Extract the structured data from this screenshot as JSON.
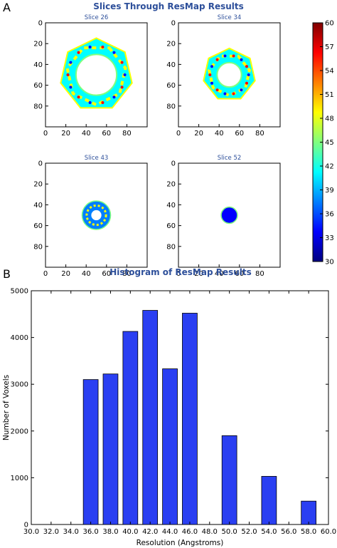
{
  "panel_a": {
    "letter": "A",
    "title": "Slices Through ResMap Results",
    "slices": [
      {
        "title": "Slice 26",
        "ring_outer": 36,
        "ring_inner": 20,
        "shape": "heptagon"
      },
      {
        "title": "Slice 34",
        "ring_outer": 26,
        "ring_inner": 12,
        "shape": "heptagon"
      },
      {
        "title": "Slice 43",
        "ring_outer": 14,
        "ring_inner": 5,
        "shape": "circle"
      },
      {
        "title": "Slice 52",
        "ring_outer": 8,
        "ring_inner": 0,
        "shape": "circle"
      }
    ],
    "x_ticks": [
      "0",
      "20",
      "40",
      "60",
      "80"
    ],
    "y_ticks": [
      "0",
      "20",
      "40",
      "60",
      "80"
    ],
    "colorbar": {
      "ticks": [
        "60",
        "57",
        "54",
        "51",
        "48",
        "45",
        "42",
        "39",
        "36",
        "33",
        "30"
      ],
      "min": 30,
      "max": 60,
      "colormap": [
        "#00007f",
        "#0000ff",
        "#007fff",
        "#00ffff",
        "#7fff7f",
        "#ffff00",
        "#ff7f00",
        "#ff0000",
        "#7f0000"
      ]
    }
  },
  "panel_b": {
    "letter": "B"
  },
  "chart_data": {
    "type": "bar",
    "title": "Histogram of ResMap Results",
    "xlabel": "Resolution (Angstroms)",
    "ylabel": "Number of Voxels",
    "categories": [
      "30.0",
      "32.0",
      "34.0",
      "36.0",
      "38.0",
      "40.0",
      "42.0",
      "44.0",
      "46.0",
      "48.0",
      "50.0",
      "52.0",
      "54.0",
      "56.0",
      "58.0",
      "60.0"
    ],
    "x": [
      36,
      38,
      40,
      42,
      44,
      46,
      50,
      54,
      58
    ],
    "values": [
      3100,
      3220,
      4130,
      4580,
      3330,
      4520,
      1900,
      1030,
      500
    ],
    "xlim": [
      30,
      60
    ],
    "ylim": [
      0,
      5000
    ],
    "y_ticks": [
      "0",
      "1000",
      "2000",
      "3000",
      "4000",
      "5000"
    ],
    "bar_width": 1.5,
    "bar_color": "#2a3ff2",
    "grid": false
  }
}
